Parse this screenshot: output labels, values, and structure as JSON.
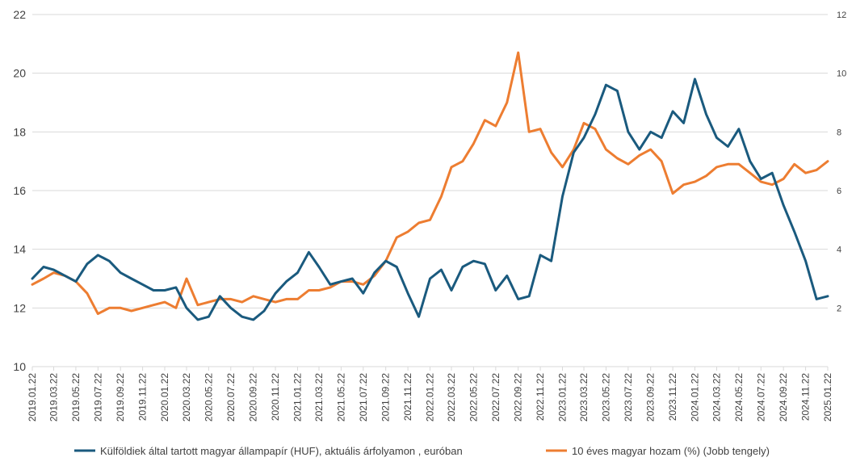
{
  "chart_data": {
    "type": "line",
    "y_left": {
      "min": 10,
      "max": 22,
      "ticks": [
        "10",
        "12",
        "14",
        "16",
        "18",
        "20",
        "22"
      ]
    },
    "y_right": {
      "min": 0,
      "max": 12,
      "ticks": [
        "2",
        "4",
        "6",
        "8",
        "10",
        "12"
      ]
    },
    "x_ticks": [
      "2019.01.22",
      "2019.03.22",
      "2019.05.22",
      "2019.07.22",
      "2019.09.22",
      "2019.11.22",
      "2020.01.22",
      "2020.03.22",
      "2020.05.22",
      "2020.07.22",
      "2020.09.22",
      "2020.11.22",
      "2021.01.22",
      "2021.03.22",
      "2021.05.22",
      "2021.07.22",
      "2021.09.22",
      "2021.11.22",
      "2022.01.22",
      "2022.03.22",
      "2022.05.22",
      "2022.07.22",
      "2022.09.22",
      "2022.11.22",
      "2023.01.22",
      "2023.03.22",
      "2023.05.22",
      "2023.07.22",
      "2023.09.22",
      "2023.11.22",
      "2024.01.22",
      "2024.03.22",
      "2024.05.22",
      "2024.07.22",
      "2024.09.22",
      "2024.11.22",
      "2025.01.22"
    ],
    "grid": "horizontal",
    "legend_position": "bottom",
    "series": [
      {
        "name": "Külföldiek által tartott magyar állampapír (HUF), aktuális árfolyamon , euróban",
        "axis": "left",
        "color": "#1a5a7e",
        "x": [
          "2019.01.22",
          "2019.02.22",
          "2019.03.22",
          "2019.04.22",
          "2019.05.22",
          "2019.06.22",
          "2019.07.22",
          "2019.08.22",
          "2019.09.22",
          "2019.10.22",
          "2019.11.22",
          "2019.12.22",
          "2020.01.22",
          "2020.02.22",
          "2020.03.22",
          "2020.04.22",
          "2020.05.22",
          "2020.06.22",
          "2020.07.22",
          "2020.08.22",
          "2020.09.22",
          "2020.10.22",
          "2020.11.22",
          "2020.12.22",
          "2021.01.22",
          "2021.02.22",
          "2021.03.22",
          "2021.04.22",
          "2021.05.22",
          "2021.06.22",
          "2021.07.22",
          "2021.08.22",
          "2021.09.22",
          "2021.10.22",
          "2021.11.22",
          "2021.12.22",
          "2022.01.22",
          "2022.02.22",
          "2022.03.22",
          "2022.04.22",
          "2022.05.22",
          "2022.06.22",
          "2022.07.22",
          "2022.08.22",
          "2022.09.22",
          "2022.10.22",
          "2022.11.22",
          "2022.12.22",
          "2023.01.22",
          "2023.02.22",
          "2023.03.22",
          "2023.04.22",
          "2023.05.22",
          "2023.06.22",
          "2023.07.22",
          "2023.08.22",
          "2023.09.22",
          "2023.10.22",
          "2023.11.22",
          "2023.12.22",
          "2024.01.22",
          "2024.02.22",
          "2024.03.22",
          "2024.04.22",
          "2024.05.22",
          "2024.06.22",
          "2024.07.22",
          "2024.08.22",
          "2024.09.22",
          "2024.10.22",
          "2024.11.22",
          "2024.12.22",
          "2025.01.22"
        ],
        "values": [
          13.0,
          13.4,
          13.3,
          13.1,
          12.9,
          13.5,
          13.8,
          13.6,
          13.2,
          13.0,
          12.8,
          12.6,
          12.6,
          12.7,
          12.0,
          11.6,
          11.7,
          12.4,
          12.0,
          11.7,
          11.6,
          11.9,
          12.5,
          12.9,
          13.2,
          13.9,
          13.4,
          12.8,
          12.9,
          13.0,
          12.5,
          13.2,
          13.6,
          13.4,
          12.5,
          11.7,
          13.0,
          13.3,
          12.6,
          13.4,
          13.6,
          13.5,
          12.6,
          13.1,
          12.3,
          12.4,
          13.8,
          13.6,
          15.8,
          17.3,
          17.8,
          18.6,
          19.6,
          19.4,
          18.0,
          17.4,
          18.0,
          17.8,
          18.7,
          18.3,
          19.8,
          18.6,
          17.8,
          17.5,
          18.1,
          17.0,
          16.4,
          16.6,
          15.5,
          14.6,
          13.6,
          12.3,
          12.4
        ]
      },
      {
        "name": "10 éves magyar hozam (%) (Jobb tengely)",
        "axis": "right",
        "color": "#ed7d31",
        "x": [
          "2019.01.22",
          "2019.02.22",
          "2019.03.22",
          "2019.04.22",
          "2019.05.22",
          "2019.06.22",
          "2019.07.22",
          "2019.08.22",
          "2019.09.22",
          "2019.10.22",
          "2019.11.22",
          "2019.12.22",
          "2020.01.22",
          "2020.02.22",
          "2020.03.22",
          "2020.04.22",
          "2020.05.22",
          "2020.06.22",
          "2020.07.22",
          "2020.08.22",
          "2020.09.22",
          "2020.10.22",
          "2020.11.22",
          "2020.12.22",
          "2021.01.22",
          "2021.02.22",
          "2021.03.22",
          "2021.04.22",
          "2021.05.22",
          "2021.06.22",
          "2021.07.22",
          "2021.08.22",
          "2021.09.22",
          "2021.10.22",
          "2021.11.22",
          "2021.12.22",
          "2022.01.22",
          "2022.02.22",
          "2022.03.22",
          "2022.04.22",
          "2022.05.22",
          "2022.06.22",
          "2022.07.22",
          "2022.08.22",
          "2022.09.22",
          "2022.10.22",
          "2022.11.22",
          "2022.12.22",
          "2023.01.22",
          "2023.02.22",
          "2023.03.22",
          "2023.04.22",
          "2023.05.22",
          "2023.06.22",
          "2023.07.22",
          "2023.08.22",
          "2023.09.22",
          "2023.10.22",
          "2023.11.22",
          "2023.12.22",
          "2024.01.22",
          "2024.02.22",
          "2024.03.22",
          "2024.04.22",
          "2024.05.22",
          "2024.06.22",
          "2024.07.22",
          "2024.08.22",
          "2024.09.22",
          "2024.10.22",
          "2024.11.22",
          "2024.12.22",
          "2025.01.22"
        ],
        "values": [
          2.8,
          3.0,
          3.2,
          3.1,
          2.9,
          2.5,
          1.8,
          2.0,
          2.0,
          1.9,
          2.0,
          2.1,
          2.2,
          2.0,
          3.0,
          2.1,
          2.2,
          2.3,
          2.3,
          2.2,
          2.4,
          2.3,
          2.2,
          2.3,
          2.3,
          2.6,
          2.6,
          2.7,
          2.9,
          2.9,
          2.8,
          3.1,
          3.6,
          4.4,
          4.6,
          4.9,
          5.0,
          5.8,
          6.8,
          7.0,
          7.6,
          8.4,
          8.2,
          9.0,
          10.7,
          8.0,
          8.1,
          7.3,
          6.8,
          7.4,
          8.3,
          8.1,
          7.4,
          7.1,
          6.9,
          7.2,
          7.4,
          7.0,
          5.9,
          6.2,
          6.3,
          6.5,
          6.8,
          6.9,
          6.9,
          6.6,
          6.3,
          6.2,
          6.4,
          6.9,
          6.6,
          6.7,
          7.0
        ]
      }
    ]
  }
}
